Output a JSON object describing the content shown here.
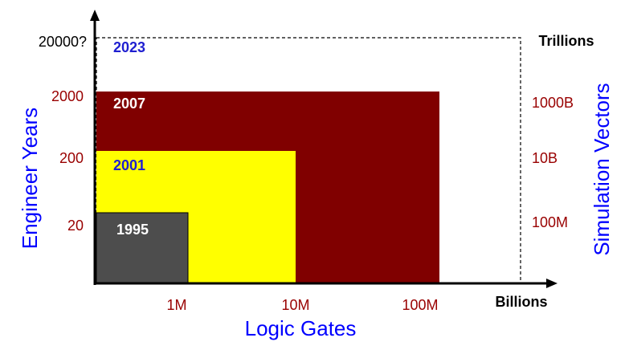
{
  "colors": {
    "box_2023_border": "#000000",
    "box_2007": "#800000",
    "box_2001": "#ffff00",
    "box_1995": "#4d4d4d",
    "axis": "#000000",
    "blue_text": "#0000ff",
    "red_text": "#990000",
    "dark_label_blue": "#1f1fd0",
    "white_text": "#ffffff"
  },
  "labels": {
    "y_axis_title": "Engineer Years",
    "x_axis_title": "Logic Gates",
    "right_axis_title": "Simulation Vectors",
    "right_top": "Trillions",
    "x_end": "Billions"
  },
  "y_ticks": [
    "20000?",
    "2000",
    "200",
    "20"
  ],
  "x_ticks": [
    "1M",
    "10M",
    "100M"
  ],
  "right_ticks": [
    "1000B",
    "10B",
    "100M"
  ],
  "boxes": [
    {
      "year": "2023",
      "style": "dashed"
    },
    {
      "year": "2007",
      "style": "filled"
    },
    {
      "year": "2001",
      "style": "filled"
    },
    {
      "year": "1995",
      "style": "filled"
    }
  ]
}
